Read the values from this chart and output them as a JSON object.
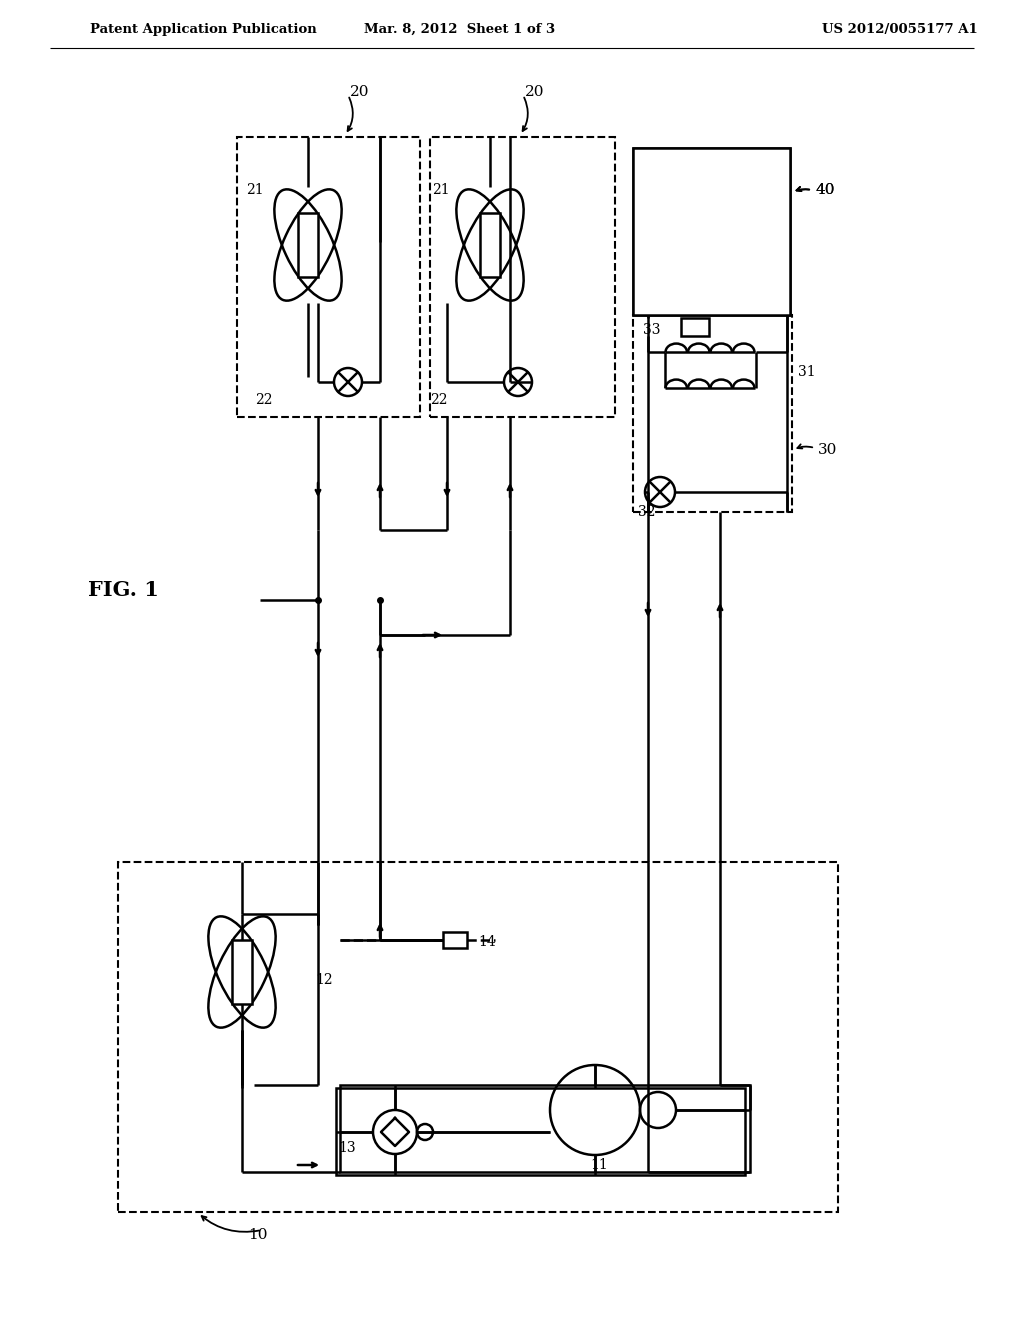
{
  "bg_color": "#ffffff",
  "lc": "#000000",
  "header_left": "Patent Application Publication",
  "header_mid": "Mar. 8, 2012  Sheet 1 of 3",
  "header_right": "US 2012/0055177 A1",
  "fig_label": "FIG. 1"
}
